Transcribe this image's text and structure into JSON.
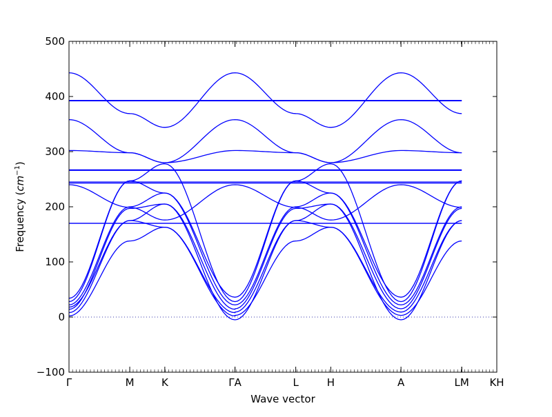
{
  "chart_data": {
    "type": "line",
    "xlabel": "Wave vector",
    "ylabel_text": "Frequency (",
    "ylabel_unit_base": "cm",
    "ylabel_unit_exp": "−1",
    "ylabel_close": ")",
    "ylim": [
      -100,
      500
    ],
    "yticks": [
      "500",
      "400",
      "300",
      "200",
      "100",
      "0",
      "−100"
    ],
    "grid": false,
    "line_color": "#0000ff",
    "zero_line_color": "#3333aa",
    "x_points": [
      {
        "label": "Γ",
        "pos": 0.0
      },
      {
        "label": "M",
        "pos": 1.0
      },
      {
        "label": "K",
        "pos": 1.577
      },
      {
        "label": "Γ",
        "pos": 2.732
      },
      {
        "label": "A",
        "pos": 2.732
      },
      {
        "label": "L",
        "pos": 3.732
      },
      {
        "label": "H",
        "pos": 4.309
      },
      {
        "label": "A",
        "pos": 5.464
      },
      {
        "label": "L",
        "pos": 6.464
      },
      {
        "label": "M",
        "pos": 6.464
      },
      {
        "label": "K",
        "pos": 7.041
      },
      {
        "label": "H",
        "pos": 7.041
      }
    ],
    "x_tick_labels": [
      {
        "text": "Γ",
        "pos": 0.0
      },
      {
        "text": "M",
        "pos": 1.0
      },
      {
        "text": "K",
        "pos": 1.577
      },
      {
        "text": "ΓA",
        "pos": 2.732
      },
      {
        "text": "L",
        "pos": 3.732
      },
      {
        "text": "H",
        "pos": 4.309
      },
      {
        "text": "A",
        "pos": 5.464
      },
      {
        "text": "LM",
        "pos": 6.464
      },
      {
        "text": "KH",
        "pos": 7.041
      }
    ],
    "series": [
      {
        "values": [
          2,
          138,
          163,
          2,
          3,
          138,
          163,
          3,
          138,
          163
        ]
      },
      {
        "values": [
          8,
          175,
          163,
          8,
          9,
          175,
          163,
          9,
          175,
          163
        ]
      },
      {
        "values": [
          14,
          197,
          205,
          14,
          15,
          197,
          205,
          15,
          197,
          205
        ]
      },
      {
        "values": [
          22,
          200,
          225,
          22,
          22,
          200,
          225,
          22,
          200,
          225
        ]
      },
      {
        "values": [
          34,
          247,
          225,
          36,
          36,
          247,
          225,
          36,
          247,
          225
        ]
      },
      {
        "values": [
          302,
          298,
          280,
          302,
          302,
          298,
          280,
          302,
          298,
          280
        ]
      },
      {
        "values": [
          358,
          298,
          280,
          358,
          358,
          298,
          280,
          358,
          298,
          280
        ]
      },
      {
        "values": [
          443,
          369,
          344,
          443,
          443,
          369,
          344,
          443,
          369,
          344
        ]
      },
      {
        "values": [
          240,
          199,
          176,
          240,
          240,
          199,
          176,
          240,
          199,
          176
        ]
      },
      {
        "values": [
          170,
          170,
          170,
          170,
          170,
          170,
          170,
          170,
          170,
          170
        ]
      },
      {
        "values": [
          170,
          170,
          170,
          170,
          170,
          170,
          170,
          170,
          170,
          170
        ]
      },
      {
        "values": [
          243,
          243,
          243,
          243,
          243,
          243,
          243,
          243,
          243,
          243
        ]
      },
      {
        "values": [
          245,
          245,
          245,
          245,
          245,
          245,
          245,
          245,
          245,
          245
        ]
      },
      {
        "values": [
          266,
          266,
          266,
          266,
          266,
          266,
          266,
          266,
          266,
          266
        ]
      },
      {
        "values": [
          267,
          267,
          267,
          267,
          267,
          267,
          267,
          267,
          267,
          267
        ]
      },
      {
        "values": [
          392,
          392,
          392,
          392,
          392,
          392,
          392,
          392,
          392,
          392
        ]
      },
      {
        "values": [
          393,
          393,
          393,
          393,
          393,
          393,
          393,
          393,
          393,
          393
        ]
      },
      {
        "values": [
          28,
          247,
          278,
          28,
          28,
          247,
          278,
          28,
          247,
          278
        ]
      },
      {
        "values": [
          18,
          175,
          205,
          -5,
          -5,
          175,
          205,
          -5,
          175,
          205
        ]
      }
    ]
  }
}
